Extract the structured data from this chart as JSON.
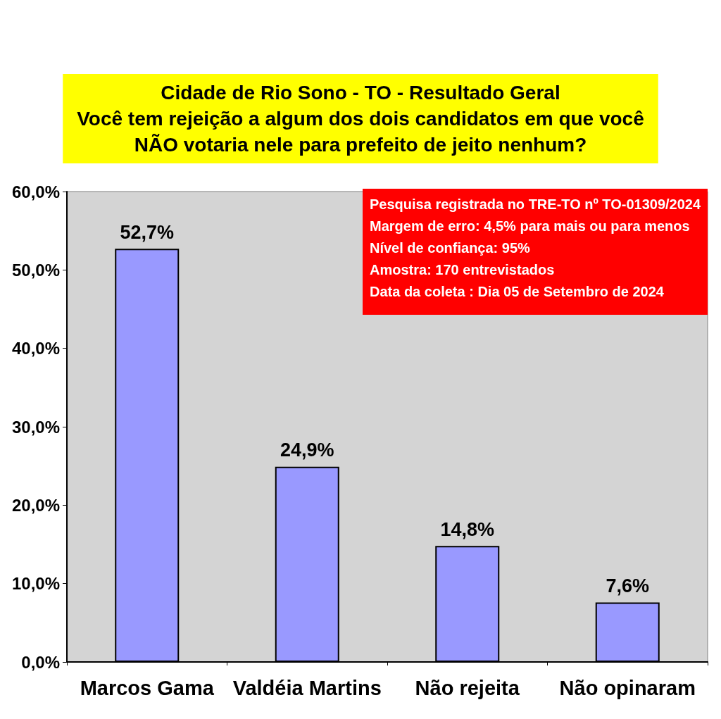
{
  "chart_data": {
    "type": "bar",
    "title": "Cidade de Rio Sono - TO - Resultado Geral\nVocê tem rejeição a algum dos dois candidatos em que você\nNÃO votaria nele para prefeito de jeito nenhum?",
    "categories": [
      "Marcos Gama",
      "Valdéia Martins",
      "Não rejeita",
      "Não opinaram"
    ],
    "values": [
      52.7,
      24.9,
      14.8,
      7.6
    ],
    "value_labels": [
      "52,7%",
      "24,9%",
      "14,8%",
      "7,6%"
    ],
    "color": "#9999ff",
    "ylim": [
      0,
      60
    ],
    "yticks": [
      {
        "value": 0,
        "label": "0,0%"
      },
      {
        "value": 10,
        "label": "10,0%"
      },
      {
        "value": 20,
        "label": "20,0%"
      },
      {
        "value": 30,
        "label": "30,0%"
      },
      {
        "value": 40,
        "label": "40,0%"
      },
      {
        "value": 50,
        "label": "50,0%"
      },
      {
        "value": 60,
        "label": "60,0%"
      }
    ],
    "grid": false,
    "annotations": [
      "Pesquisa registrada no TRE-TO nº TO-01309/2024",
      "Margem de erro: 4,5% para mais ou para menos",
      "Nível de confiança: 95%",
      "Amostra: 170 entrevistados",
      "Data da coleta : Dia 05 de Setembro de 2024"
    ]
  }
}
